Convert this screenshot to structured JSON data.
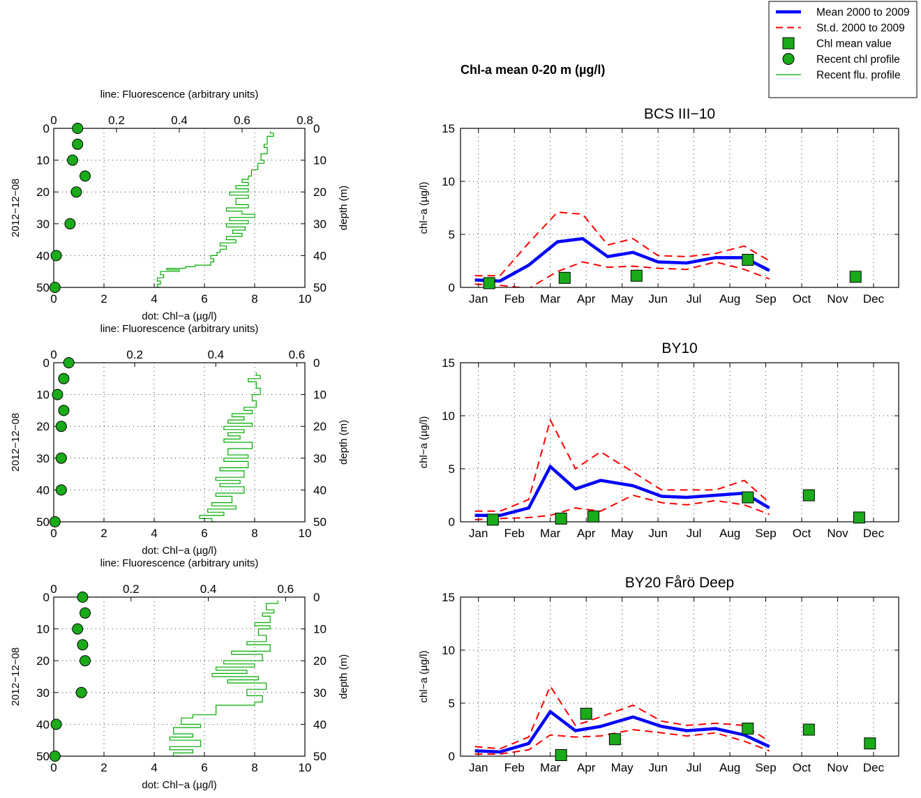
{
  "figure": {
    "suptitle": "Chl-a mean 0-20 m (µg/l)",
    "legend": {
      "placement": "top-right",
      "entries": [
        {
          "label": "Mean 2000 to 2009",
          "color": "#0000ff",
          "style": "thick-line"
        },
        {
          "label": "St.d. 2000 to 2009",
          "color": "#ff0000",
          "style": "dashed-line"
        },
        {
          "label": "Chl mean value",
          "color": "#1aaa1a",
          "style": "square"
        },
        {
          "label": "Recent chl profile",
          "color": "#1aaa1a",
          "style": "circle"
        },
        {
          "label": "Recent flu. profile",
          "color": "#00aa00",
          "style": "thin-line"
        }
      ]
    },
    "colors": {
      "mean": "#0000ff",
      "std": "#ff0000",
      "marker": "#1aaa1a",
      "profile": "#00aa00"
    }
  },
  "chart_data": [
    {
      "type": "scatter",
      "panel": "profile-1",
      "xlabel_top": "line: Fluorescence (arbitrary units)",
      "xlabel_bottom": "dot: Chl−a (µg/l)",
      "ylabel_left": "2012−12−08",
      "ylabel_right": "depth (m)",
      "xlim_bottom": [
        0,
        10
      ],
      "xticks_bottom": [
        0,
        2,
        4,
        6,
        8,
        10
      ],
      "xlim_top": [
        0,
        0.8
      ],
      "xticks_top": [
        0,
        0.2,
        0.4,
        0.6,
        0.8
      ],
      "ylim": [
        0,
        50
      ],
      "yticks": [
        0,
        10,
        20,
        30,
        40,
        50
      ],
      "y_reversed": true,
      "grid": true,
      "dots": [
        [
          0.95,
          0
        ],
        [
          0.95,
          5
        ],
        [
          0.75,
          10
        ],
        [
          1.25,
          15
        ],
        [
          0.9,
          20
        ],
        [
          0.65,
          30
        ],
        [
          0.1,
          40
        ],
        [
          0.05,
          50
        ]
      ],
      "fluorescence_profile": [
        [
          0.69,
          1
        ],
        [
          0.7,
          1.5
        ],
        [
          0.68,
          2.5
        ],
        [
          0.67,
          5
        ],
        [
          0.68,
          6
        ],
        [
          0.66,
          8
        ],
        [
          0.67,
          10
        ],
        [
          0.65,
          11
        ],
        [
          0.63,
          13
        ],
        [
          0.62,
          15
        ],
        [
          0.6,
          16
        ],
        [
          0.62,
          17
        ],
        [
          0.58,
          18
        ],
        [
          0.62,
          19
        ],
        [
          0.56,
          20
        ],
        [
          0.62,
          21
        ],
        [
          0.58,
          22
        ],
        [
          0.62,
          24
        ],
        [
          0.55,
          25
        ],
        [
          0.6,
          26
        ],
        [
          0.64,
          27
        ],
        [
          0.56,
          28
        ],
        [
          0.62,
          29
        ],
        [
          0.55,
          30
        ],
        [
          0.61,
          31
        ],
        [
          0.57,
          32
        ],
        [
          0.6,
          33
        ],
        [
          0.55,
          34
        ],
        [
          0.58,
          35
        ],
        [
          0.53,
          36
        ],
        [
          0.55,
          37
        ],
        [
          0.53,
          38
        ],
        [
          0.52,
          39
        ],
        [
          0.5,
          40
        ],
        [
          0.51,
          41
        ],
        [
          0.5,
          42
        ],
        [
          0.45,
          43
        ],
        [
          0.42,
          43.5
        ],
        [
          0.36,
          44
        ],
        [
          0.4,
          44.5
        ],
        [
          0.34,
          45
        ],
        [
          0.35,
          46
        ],
        [
          0.33,
          47
        ],
        [
          0.34,
          48
        ],
        [
          0.33,
          49
        ],
        [
          0.34,
          50
        ]
      ]
    },
    {
      "type": "line",
      "panel": "timeseries-1",
      "title": "BCS III−10",
      "ylabel": "chl−a (µg/l)",
      "categories": [
        "Jan",
        "Feb",
        "Mar",
        "Apr",
        "May",
        "Jun",
        "Jul",
        "Aug",
        "Sep",
        "Oct",
        "Nov",
        "Dec"
      ],
      "xlim": [
        0.5,
        12.7
      ],
      "ylim": [
        0,
        15
      ],
      "yticks": [
        0,
        5,
        10,
        15
      ],
      "grid": true,
      "mean": [
        [
          0.9,
          0.7
        ],
        [
          1.6,
          0.6
        ],
        [
          2.4,
          2.1
        ],
        [
          3.2,
          4.3
        ],
        [
          3.9,
          4.6
        ],
        [
          4.6,
          2.9
        ],
        [
          5.3,
          3.3
        ],
        [
          6.0,
          2.4
        ],
        [
          6.8,
          2.3
        ],
        [
          7.6,
          2.8
        ],
        [
          8.4,
          2.8
        ],
        [
          9.1,
          1.6
        ]
      ],
      "std_upper": [
        [
          0.9,
          1.1
        ],
        [
          1.6,
          1.1
        ],
        [
          2.4,
          4.2
        ],
        [
          3.2,
          7.1
        ],
        [
          3.9,
          6.9
        ],
        [
          4.6,
          4.0
        ],
        [
          5.3,
          4.6
        ],
        [
          6.0,
          3.0
        ],
        [
          6.8,
          2.9
        ],
        [
          7.6,
          3.2
        ],
        [
          8.4,
          3.9
        ],
        [
          9.1,
          2.5
        ]
      ],
      "std_lower": [
        [
          0.9,
          0.3
        ],
        [
          1.6,
          0.2
        ],
        [
          2.4,
          -0.1
        ],
        [
          3.2,
          1.5
        ],
        [
          3.9,
          2.4
        ],
        [
          4.6,
          1.9
        ],
        [
          5.3,
          2.0
        ],
        [
          6.0,
          1.8
        ],
        [
          6.8,
          1.7
        ],
        [
          7.6,
          2.4
        ],
        [
          8.4,
          1.7
        ],
        [
          9.1,
          0.8
        ]
      ],
      "chl_mean_values": [
        [
          1.3,
          0.4
        ],
        [
          3.4,
          0.9
        ],
        [
          5.4,
          1.1
        ],
        [
          8.5,
          2.6
        ],
        [
          11.5,
          1.0
        ]
      ]
    },
    {
      "type": "scatter",
      "panel": "profile-2",
      "xlabel_top": "line: Fluorescence (arbitrary units)",
      "xlabel_bottom": "dot: Chl−a (µg/l)",
      "ylabel_left": "2012−12−08",
      "ylabel_right": "depth (m)",
      "xlim_bottom": [
        0,
        10
      ],
      "xticks_bottom": [
        0,
        2,
        4,
        6,
        8,
        10
      ],
      "xlim_top": [
        0,
        0.62
      ],
      "xticks_top": [
        0,
        0.2,
        0.4,
        0.6
      ],
      "ylim": [
        0,
        50
      ],
      "yticks": [
        0,
        10,
        20,
        30,
        40,
        50
      ],
      "y_reversed": true,
      "grid": true,
      "dots": [
        [
          0.6,
          0
        ],
        [
          0.4,
          5
        ],
        [
          0.15,
          10
        ],
        [
          0.4,
          15
        ],
        [
          0.3,
          20
        ],
        [
          0.3,
          30
        ],
        [
          0.3,
          40
        ],
        [
          0.05,
          50
        ]
      ],
      "fluorescence_profile": [
        [
          0.5,
          3
        ],
        [
          0.51,
          4
        ],
        [
          0.48,
          5
        ],
        [
          0.5,
          6
        ],
        [
          0.51,
          8
        ],
        [
          0.49,
          10
        ],
        [
          0.5,
          12
        ],
        [
          0.47,
          14
        ],
        [
          0.49,
          15
        ],
        [
          0.44,
          16
        ],
        [
          0.47,
          17
        ],
        [
          0.43,
          18
        ],
        [
          0.49,
          19
        ],
        [
          0.42,
          20
        ],
        [
          0.47,
          21
        ],
        [
          0.43,
          22
        ],
        [
          0.46,
          23
        ],
        [
          0.42,
          24
        ],
        [
          0.49,
          25
        ],
        [
          0.43,
          27
        ],
        [
          0.48,
          29
        ],
        [
          0.42,
          30
        ],
        [
          0.48,
          31
        ],
        [
          0.41,
          33
        ],
        [
          0.47,
          34
        ],
        [
          0.4,
          36
        ],
        [
          0.46,
          37
        ],
        [
          0.41,
          38
        ],
        [
          0.47,
          39
        ],
        [
          0.4,
          41
        ],
        [
          0.44,
          42
        ],
        [
          0.39,
          44
        ],
        [
          0.45,
          45
        ],
        [
          0.38,
          46
        ],
        [
          0.42,
          47
        ],
        [
          0.36,
          48
        ],
        [
          0.39,
          49
        ],
        [
          0.4,
          50
        ]
      ]
    },
    {
      "type": "line",
      "panel": "timeseries-2",
      "title": "BY10",
      "ylabel": "chl−a (µg/l)",
      "categories": [
        "Jan",
        "Feb",
        "Mar",
        "Apr",
        "May",
        "Jun",
        "Jul",
        "Aug",
        "Sep",
        "Oct",
        "Nov",
        "Dec"
      ],
      "xlim": [
        0.5,
        12.7
      ],
      "ylim": [
        0,
        15
      ],
      "yticks": [
        0,
        5,
        10,
        15
      ],
      "grid": true,
      "mean": [
        [
          0.9,
          0.6
        ],
        [
          1.6,
          0.6
        ],
        [
          2.4,
          1.3
        ],
        [
          3.0,
          5.2
        ],
        [
          3.7,
          3.1
        ],
        [
          4.4,
          3.9
        ],
        [
          5.3,
          3.4
        ],
        [
          6.1,
          2.4
        ],
        [
          6.8,
          2.3
        ],
        [
          7.6,
          2.5
        ],
        [
          8.4,
          2.7
        ],
        [
          9.1,
          1.3
        ]
      ],
      "std_upper": [
        [
          0.9,
          1.0
        ],
        [
          1.6,
          1.0
        ],
        [
          2.4,
          2.1
        ],
        [
          3.0,
          9.6
        ],
        [
          3.7,
          5.0
        ],
        [
          4.4,
          6.6
        ],
        [
          5.3,
          4.7
        ],
        [
          6.1,
          3.0
        ],
        [
          6.8,
          3.0
        ],
        [
          7.6,
          3.0
        ],
        [
          8.4,
          3.9
        ],
        [
          9.1,
          1.8
        ]
      ],
      "std_lower": [
        [
          0.9,
          0.2
        ],
        [
          1.6,
          0.3
        ],
        [
          2.4,
          0.4
        ],
        [
          3.0,
          0.6
        ],
        [
          3.7,
          1.3
        ],
        [
          4.4,
          1.0
        ],
        [
          5.3,
          2.5
        ],
        [
          6.1,
          1.8
        ],
        [
          6.8,
          1.6
        ],
        [
          7.6,
          2.0
        ],
        [
          8.4,
          1.6
        ],
        [
          9.1,
          0.7
        ]
      ],
      "chl_mean_values": [
        [
          1.4,
          0.2
        ],
        [
          3.3,
          0.3
        ],
        [
          4.2,
          0.5
        ],
        [
          8.5,
          2.3
        ],
        [
          10.2,
          2.5
        ],
        [
          11.6,
          0.4
        ]
      ]
    },
    {
      "type": "scatter",
      "panel": "profile-3",
      "xlabel_top": "line: Fluorescence (arbitrary units)",
      "xlabel_bottom": "dot: Chl−a (µg/l)",
      "ylabel_left": "2012−12−08",
      "ylabel_right": "depth (m)",
      "xlim_bottom": [
        0,
        10
      ],
      "xticks_bottom": [
        0,
        2,
        4,
        6,
        8,
        10
      ],
      "xlim_top": [
        0,
        0.65
      ],
      "xticks_top": [
        0,
        0.2,
        0.4,
        0.6
      ],
      "ylim": [
        0,
        50
      ],
      "yticks": [
        0,
        10,
        20,
        30,
        40,
        50
      ],
      "y_reversed": true,
      "grid": true,
      "dots": [
        [
          1.15,
          0
        ],
        [
          1.25,
          5
        ],
        [
          0.95,
          10
        ],
        [
          1.15,
          15
        ],
        [
          1.25,
          20
        ],
        [
          1.1,
          30
        ],
        [
          0.1,
          40
        ],
        [
          0.05,
          50
        ]
      ],
      "fluorescence_profile": [
        [
          0.58,
          1
        ],
        [
          0.55,
          2
        ],
        [
          0.57,
          4
        ],
        [
          0.54,
          5
        ],
        [
          0.56,
          6
        ],
        [
          0.52,
          8
        ],
        [
          0.56,
          9
        ],
        [
          0.53,
          10
        ],
        [
          0.55,
          12
        ],
        [
          0.5,
          14
        ],
        [
          0.56,
          15
        ],
        [
          0.46,
          17
        ],
        [
          0.54,
          18
        ],
        [
          0.44,
          20
        ],
        [
          0.52,
          21
        ],
        [
          0.42,
          22
        ],
        [
          0.5,
          23
        ],
        [
          0.41,
          24
        ],
        [
          0.53,
          25
        ],
        [
          0.45,
          26
        ],
        [
          0.55,
          27
        ],
        [
          0.5,
          29
        ],
        [
          0.54,
          31
        ],
        [
          0.52,
          33
        ],
        [
          0.42,
          34
        ],
        [
          0.36,
          37
        ],
        [
          0.33,
          38
        ],
        [
          0.38,
          40
        ],
        [
          0.31,
          41
        ],
        [
          0.36,
          43
        ],
        [
          0.3,
          44
        ],
        [
          0.38,
          45
        ],
        [
          0.3,
          47
        ],
        [
          0.36,
          48
        ],
        [
          0.31,
          49
        ],
        [
          0.33,
          50
        ]
      ]
    },
    {
      "type": "line",
      "panel": "timeseries-3",
      "title": "BY20 Fårö Deep",
      "ylabel": "chl−a (µg/l)",
      "categories": [
        "Jan",
        "Feb",
        "Mar",
        "Apr",
        "May",
        "Jun",
        "Jul",
        "Aug",
        "Sep",
        "Oct",
        "Nov",
        "Dec"
      ],
      "xlim": [
        0.5,
        12.7
      ],
      "ylim": [
        0,
        15
      ],
      "yticks": [
        0,
        5,
        10,
        15
      ],
      "grid": true,
      "mean": [
        [
          0.9,
          0.5
        ],
        [
          1.6,
          0.4
        ],
        [
          2.4,
          1.2
        ],
        [
          3.0,
          4.2
        ],
        [
          3.7,
          2.4
        ],
        [
          4.4,
          2.8
        ],
        [
          5.3,
          3.7
        ],
        [
          6.1,
          2.8
        ],
        [
          6.8,
          2.4
        ],
        [
          7.6,
          2.6
        ],
        [
          8.4,
          2.0
        ],
        [
          9.1,
          0.9
        ]
      ],
      "std_upper": [
        [
          0.9,
          0.9
        ],
        [
          1.6,
          0.7
        ],
        [
          2.4,
          1.8
        ],
        [
          3.0,
          6.6
        ],
        [
          3.7,
          2.9
        ],
        [
          4.4,
          3.7
        ],
        [
          5.3,
          4.8
        ],
        [
          6.1,
          3.3
        ],
        [
          6.8,
          2.9
        ],
        [
          7.6,
          3.1
        ],
        [
          8.4,
          2.9
        ],
        [
          9.1,
          1.4
        ]
      ],
      "std_lower": [
        [
          0.9,
          0.2
        ],
        [
          1.6,
          0.2
        ],
        [
          2.4,
          0.6
        ],
        [
          3.0,
          2.0
        ],
        [
          3.7,
          1.8
        ],
        [
          4.4,
          1.9
        ],
        [
          5.3,
          2.5
        ],
        [
          6.1,
          2.2
        ],
        [
          6.8,
          1.9
        ],
        [
          7.6,
          2.2
        ],
        [
          8.4,
          1.4
        ],
        [
          9.1,
          0.5
        ]
      ],
      "chl_mean_values": [
        [
          3.3,
          0.1
        ],
        [
          4.0,
          4.0
        ],
        [
          4.8,
          1.6
        ],
        [
          8.5,
          2.6
        ],
        [
          10.2,
          2.5
        ],
        [
          11.9,
          1.2
        ]
      ]
    }
  ]
}
